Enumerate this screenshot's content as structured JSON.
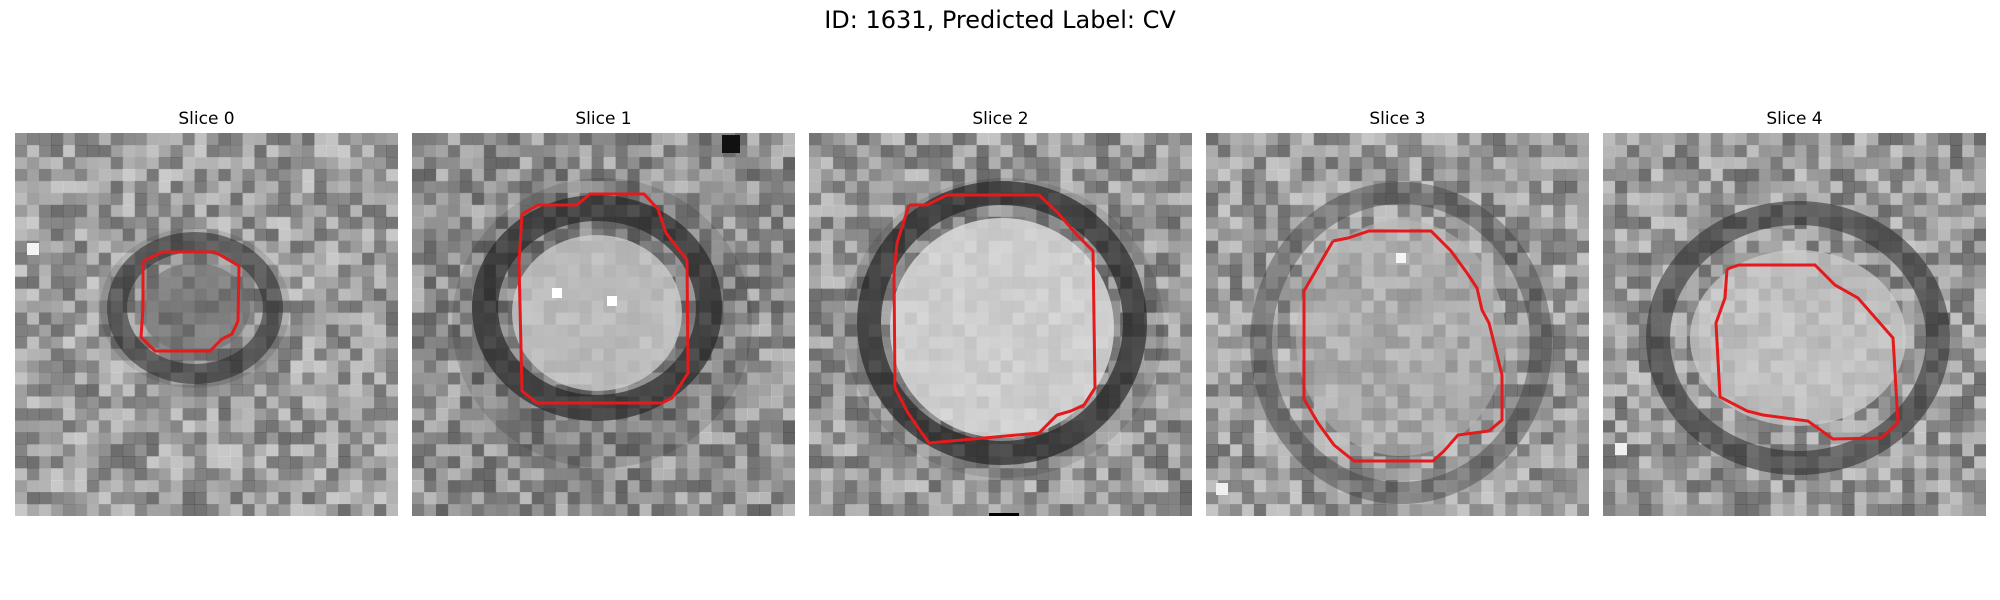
{
  "figure": {
    "title": "ID: 1631, Predicted Label: CV",
    "overlay_color": "#e41a1c",
    "slices": [
      {
        "label": "Slice 0",
        "description": "small dark ring, faint interior, red contour drawn around it"
      },
      {
        "label": "Slice 1",
        "description": "dark ring around bright vesicle, red contour drawn around it"
      },
      {
        "label": "Slice 2",
        "description": "large bright vesicle in dark ring, red contour drawn around it"
      },
      {
        "label": "Slice 3",
        "description": "mid-gray vesicle, faint ring, red contour drawn around it"
      },
      {
        "label": "Slice 4",
        "description": "bright vesicle in dark ring, red contour drawn around it"
      }
    ]
  }
}
